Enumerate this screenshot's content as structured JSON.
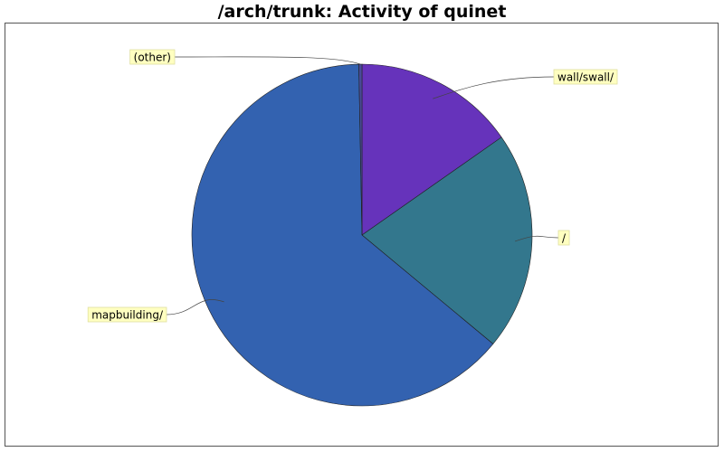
{
  "chart_data": {
    "type": "pie",
    "title": "/arch/trunk: Activity of quinet",
    "start_angle_deg": 90,
    "direction": "clockwise",
    "slices": [
      {
        "label": "wall/swall/",
        "value": 15.3,
        "color": "#6633bb"
      },
      {
        "label": "/",
        "value": 20.7,
        "color": "#33778d"
      },
      {
        "label": "mapbuilding/",
        "value": 63.7,
        "color": "#3362b0"
      },
      {
        "label": "(other)",
        "value": 0.3,
        "color": "#4a4a99"
      }
    ]
  }
}
